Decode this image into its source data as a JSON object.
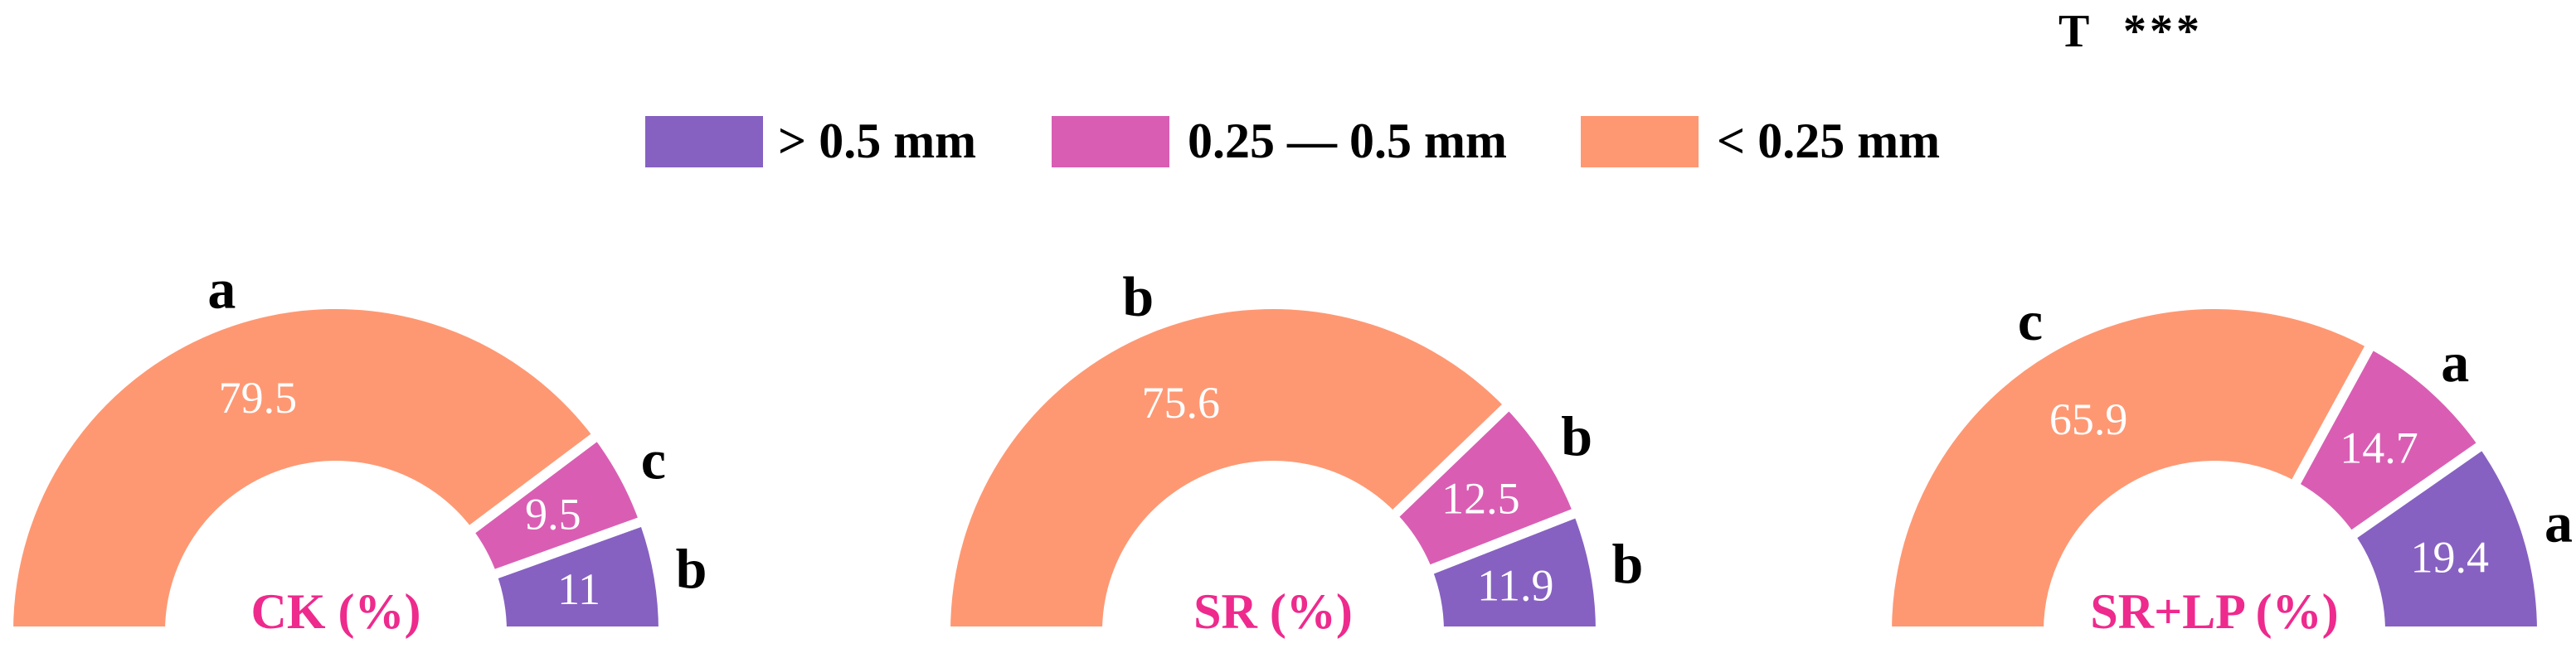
{
  "significance": {
    "factor": "T",
    "stars": "***"
  },
  "legend": {
    "items": [
      {
        "label": "> 0.5 mm",
        "color": "#8661C1"
      },
      {
        "label": "0.25 — 0.5 mm",
        "color": "#D95EB3"
      },
      {
        "label": "< 0.25 mm",
        "color": "#FE9873"
      }
    ]
  },
  "center_label_color": "#EE2A8D",
  "chart_data": [
    {
      "type": "pie",
      "shape": "half-donut",
      "title": "CK (%)",
      "categories": [
        "> 0.5 mm",
        "0.25 — 0.5 mm",
        "< 0.25 mm"
      ],
      "values": [
        11,
        9.5,
        79.5
      ],
      "value_labels": [
        "11",
        "9.5",
        "79.5"
      ],
      "letters": [
        "b",
        "c",
        "a"
      ]
    },
    {
      "type": "pie",
      "shape": "half-donut",
      "title": "SR (%)",
      "categories": [
        "> 0.5 mm",
        "0.25 — 0.5 mm",
        "< 0.25 mm"
      ],
      "values": [
        11.9,
        12.5,
        75.6
      ],
      "value_labels": [
        "11.9",
        "12.5",
        "75.6"
      ],
      "letters": [
        "b",
        "b",
        "b"
      ]
    },
    {
      "type": "pie",
      "shape": "half-donut",
      "title": "SR+LP (%)",
      "categories": [
        "> 0.5 mm",
        "0.25 — 0.5 mm",
        "< 0.25 mm"
      ],
      "values": [
        19.4,
        14.7,
        65.9
      ],
      "value_labels": [
        "19.4",
        "14.7",
        "65.9"
      ],
      "letters": [
        "a",
        "a",
        "c"
      ]
    }
  ]
}
